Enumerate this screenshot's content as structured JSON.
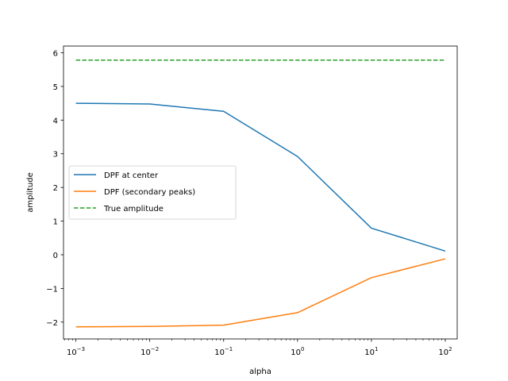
{
  "chart_data": {
    "type": "line",
    "xscale": "log",
    "xlabel": "alpha",
    "ylabel": "amplitude",
    "xlim": [
      0.00068,
      145
    ],
    "ylim": [
      -2.5,
      6.2
    ],
    "x": [
      0.001,
      0.01,
      0.1,
      1,
      10,
      100
    ],
    "x_ticks": [
      {
        "value": 0.001,
        "base": "10",
        "exp": "−3"
      },
      {
        "value": 0.01,
        "base": "10",
        "exp": "−2"
      },
      {
        "value": 0.1,
        "base": "10",
        "exp": "−1"
      },
      {
        "value": 1,
        "base": "10",
        "exp": "0"
      },
      {
        "value": 10,
        "base": "10",
        "exp": "1"
      },
      {
        "value": 100,
        "base": "10",
        "exp": "2"
      }
    ],
    "y_ticks": [
      {
        "value": -2,
        "label": "−2"
      },
      {
        "value": -1,
        "label": "−1"
      },
      {
        "value": 0,
        "label": "0"
      },
      {
        "value": 1,
        "label": "1"
      },
      {
        "value": 2,
        "label": "2"
      },
      {
        "value": 3,
        "label": "3"
      },
      {
        "value": 4,
        "label": "4"
      },
      {
        "value": 5,
        "label": "5"
      },
      {
        "value": 6,
        "label": "6"
      }
    ],
    "series": [
      {
        "name": "DPF at center",
        "color": "#1f77b4",
        "style": "solid",
        "values": [
          4.5,
          4.48,
          4.26,
          2.92,
          0.79,
          0.11
        ]
      },
      {
        "name": "DPF (secondary peaks)",
        "color": "#ff7f0e",
        "style": "solid",
        "values": [
          -2.14,
          -2.13,
          -2.09,
          -1.72,
          -0.68,
          -0.12
        ]
      },
      {
        "name": "True amplitude",
        "color": "#2ca02c",
        "style": "dashed",
        "values": [
          5.78,
          5.78,
          5.78,
          5.78,
          5.78,
          5.78
        ]
      }
    ],
    "legend": "center-left",
    "grid": false
  }
}
